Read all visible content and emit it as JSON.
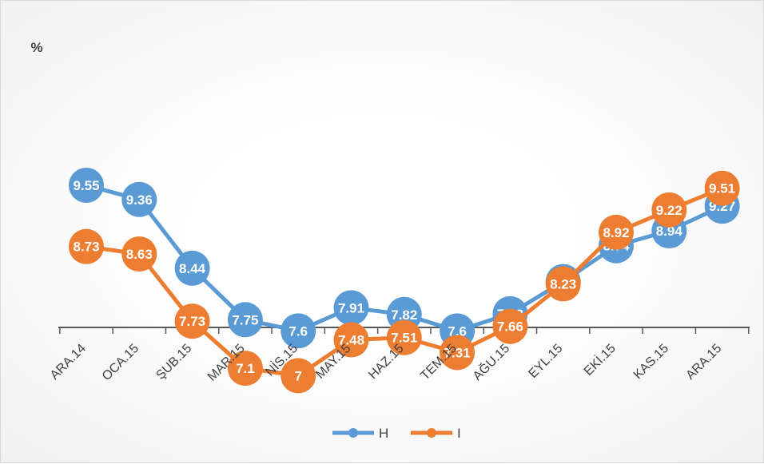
{
  "chart_data": {
    "type": "line",
    "title": "",
    "ylabel": "%",
    "xlabel": "",
    "categories": [
      "ARA.14",
      "OCA.15",
      "ŞUB.15",
      "MAR.15",
      "NİS.15",
      "MAY.15",
      "HAZ.15",
      "TEM.15",
      "AĞU.15",
      "EYL.15",
      "EKİ.15",
      "KAS.15",
      "ARA.15"
    ],
    "series": [
      {
        "name": "H",
        "color": "#5b9bd5",
        "values": [
          9.55,
          9.36,
          8.44,
          7.75,
          7.6,
          7.91,
          7.82,
          7.6,
          7.83,
          8.26,
          8.74,
          8.94,
          9.27
        ]
      },
      {
        "name": "I",
        "color": "#ed7d31",
        "values": [
          8.73,
          8.63,
          7.73,
          7.1,
          7,
          7.48,
          7.51,
          7.31,
          7.66,
          8.23,
          8.92,
          9.22,
          9.51
        ]
      }
    ],
    "data_labels": true,
    "grid": false,
    "legend": "bottom"
  }
}
